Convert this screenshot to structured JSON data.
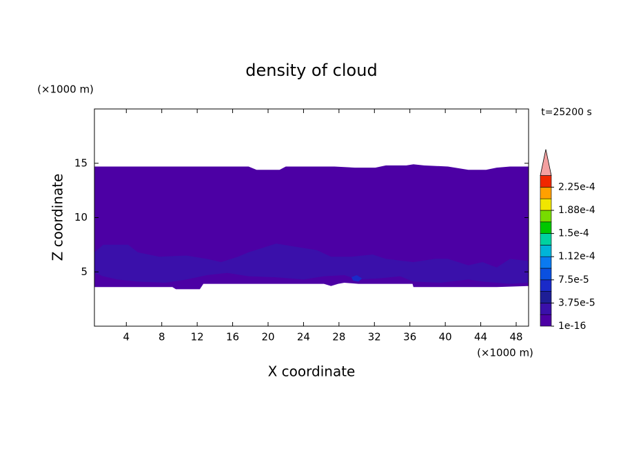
{
  "chart_data": {
    "type": "contour",
    "title": "density of cloud",
    "x_label": "X coordinate",
    "y_label": "Z coordinate",
    "x_unit": "(×1000 m)",
    "y_unit": "(×1000 m)",
    "annotation": "t=25200 s",
    "xlim": [
      0.4,
      49.4
    ],
    "ylim": [
      0,
      20
    ],
    "xticks": [
      4,
      8,
      12,
      16,
      20,
      24,
      28,
      32,
      36,
      40,
      44,
      48
    ],
    "yticks": [
      5,
      10,
      15
    ],
    "colorbar": {
      "levels": [
        1e-16,
        1.875e-05,
        3.75e-05,
        5.625e-05,
        7.5e-05,
        9.375e-05,
        0.0001125,
        0.00013125,
        0.00015,
        0.00016875,
        0.0001875,
        0.00020625,
        0.000225,
        0.00024375
      ],
      "colors": [
        "#4c00a4",
        "#3a10aa",
        "#1e1e96",
        "#1a2ac8",
        "#0a50e0",
        "#0a7af0",
        "#00b4d8",
        "#00d2a0",
        "#00c800",
        "#78dc00",
        "#f0e600",
        "#ffa000",
        "#f02800"
      ],
      "extend_color": "#f4a0a0",
      "ticks": [
        1e-16,
        {
          "value": 3.75e-05,
          "label": "3.75e-5"
        },
        {
          "value": 7.5e-05,
          "label": "7.5e-5"
        },
        {
          "value": 0.0001125,
          "label": "1.12e-4"
        },
        {
          "value": 0.00015,
          "label": "1.5e-4"
        },
        {
          "value": 0.0001875,
          "label": "1.88e-4"
        },
        {
          "value": 0.000225,
          "label": "2.25e-4"
        }
      ]
    },
    "regions": [
      {
        "value": 1e-16,
        "x": [
          0.4,
          17.8,
          18.7,
          21.3,
          22.0,
          27.5,
          29.8,
          32.1,
          33.3,
          35.6,
          36.4,
          37.6,
          40.3,
          42.6,
          44.6,
          45.8,
          47.3,
          49.4,
          49.4,
          45.8,
          36.4,
          36.3,
          30.2,
          28.6,
          27.9,
          27.1,
          26.3,
          17.8,
          17.1,
          12.7,
          12.3,
          9.6,
          9.2,
          0.4
        ],
        "z": [
          14.7,
          14.7,
          14.4,
          14.4,
          14.7,
          14.7,
          14.6,
          14.6,
          14.8,
          14.8,
          14.9,
          14.8,
          14.7,
          14.4,
          14.4,
          14.6,
          14.7,
          14.7,
          3.7,
          3.6,
          3.6,
          3.9,
          3.9,
          4.0,
          3.9,
          3.7,
          3.9,
          3.9,
          3.9,
          3.9,
          3.4,
          3.4,
          3.6,
          3.6
        ]
      },
      {
        "value": 1.875e-05,
        "x": [
          0.4,
          1.4,
          4.2,
          5.3,
          7.7,
          10.8,
          13.1,
          14.7,
          16.6,
          17.8,
          20.9,
          23.2,
          25.5,
          27.1,
          29.4,
          31.8,
          33.3,
          36.4,
          38.8,
          40.3,
          42.6,
          44.2,
          45.8,
          47.3,
          49.4,
          49.4,
          47.3,
          44.2,
          42.6,
          39.5,
          36.4,
          34.9,
          32.5,
          30.2,
          28.6,
          26.3,
          24.0,
          20.9,
          17.8,
          15.4,
          13.1,
          10.8,
          8.4,
          5.3,
          3.0,
          1.4,
          0.4
        ],
        "z": [
          6.8,
          7.5,
          7.5,
          6.8,
          6.4,
          6.5,
          6.2,
          5.9,
          6.4,
          6.8,
          7.6,
          7.3,
          7.0,
          6.4,
          6.4,
          6.6,
          6.2,
          5.9,
          6.2,
          6.2,
          5.6,
          5.9,
          5.4,
          6.2,
          6.0,
          4.0,
          3.9,
          4.1,
          4.3,
          4.0,
          4.1,
          4.6,
          4.4,
          4.3,
          4.7,
          4.6,
          4.3,
          4.5,
          4.6,
          4.9,
          4.7,
          4.3,
          4.0,
          4.1,
          4.3,
          4.6,
          4.9
        ]
      },
      {
        "value": 5.625e-05,
        "x": [
          29.4,
          30.0,
          30.6,
          30.2,
          29.6
        ],
        "z": [
          4.5,
          4.7,
          4.4,
          4.1,
          4.2
        ]
      }
    ]
  }
}
